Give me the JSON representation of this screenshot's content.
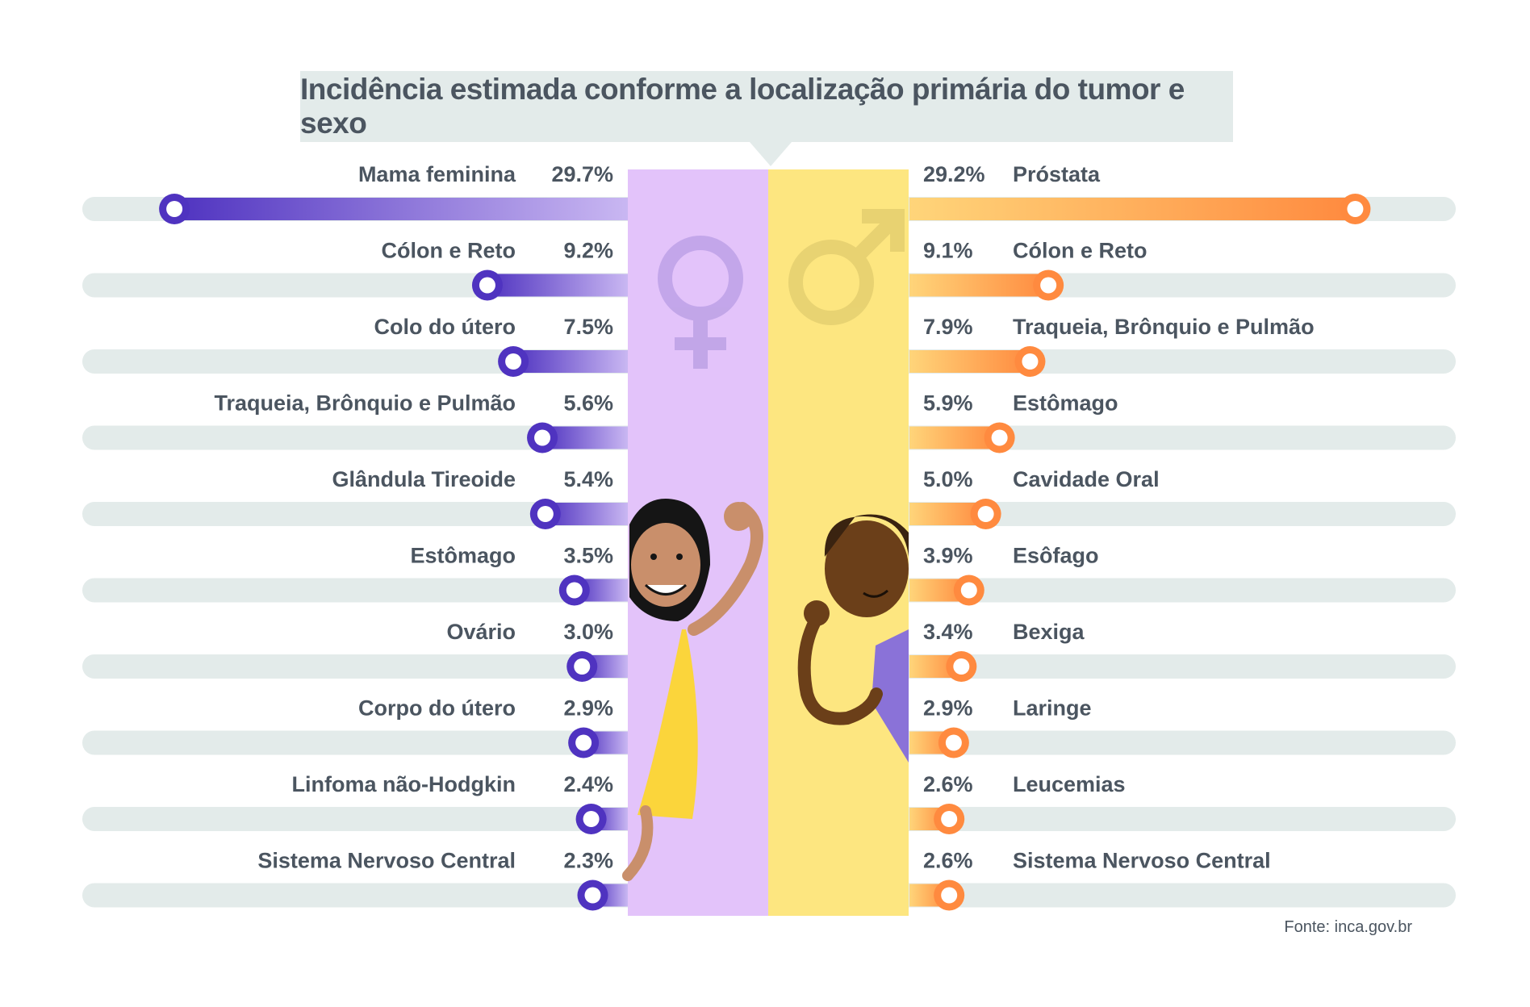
{
  "title": "Incidência estimada conforme a localização primária do tumor e sexo",
  "source": "Fonte: inca.gov.br",
  "colors": {
    "female_accent": "#4f33c0",
    "female_light": "#c9b7f2",
    "female_panel": "#e3c3fa",
    "male_accent": "#ff8a3f",
    "male_light": "#ffd57a",
    "male_panel": "#fde680",
    "track": "#e3ebea",
    "text": "#4b5560"
  },
  "icons": {
    "female": "female-symbol-icon",
    "male": "male-symbol-icon"
  },
  "chart_data": [
    {
      "type": "bar",
      "series": [
        {
          "name": "",
          "values": [
            29.7,
            9.2,
            7.5,
            5.6,
            5.4,
            3.5,
            3.0,
            2.9,
            2.4,
            2.3
          ]
        }
      ],
      "categories": [
        "Mama feminina",
        "Cólon e Reto",
        "Colo do útero",
        "Traqueia, Brônquio e Pulmão",
        "Glândula Tireoide",
        "Estômago",
        "Ovário",
        "Corpo do útero",
        "Linfoma não-Hodgkin",
        "Sistema Nervoso Central"
      ],
      "labels": [
        "29.7%",
        "9.2%",
        "7.5%",
        "5.6%",
        "5.4%",
        "3.5%",
        "3.0%",
        "2.9%",
        "2.4%",
        "2.3%"
      ],
      "orientation": "horizontal",
      "direction": "leftward"
    },
    {
      "type": "bar",
      "series": [
        {
          "name": "",
          "values": [
            29.2,
            9.1,
            7.9,
            5.9,
            5.0,
            3.9,
            3.4,
            2.9,
            2.6,
            2.6
          ]
        }
      ],
      "categories": [
        "Próstata",
        "Cólon e Reto",
        "Traqueia, Brônquio e Pulmão",
        "Estômago",
        "Cavidade Oral",
        "Esôfago",
        "Bexiga",
        "Laringe",
        "Leucemias",
        "Sistema Nervoso Central"
      ],
      "labels": [
        "29.2%",
        "9.1%",
        "7.9%",
        "5.9%",
        "5.0%",
        "3.9%",
        "3.4%",
        "2.9%",
        "2.6%",
        "2.6%"
      ],
      "orientation": "horizontal",
      "direction": "rightward"
    }
  ]
}
